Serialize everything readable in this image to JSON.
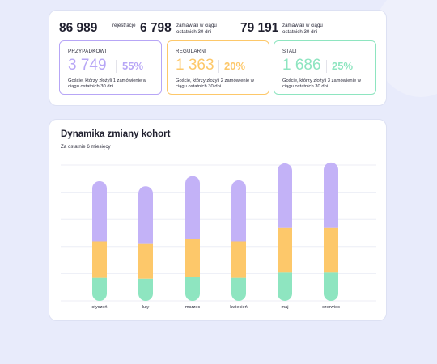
{
  "summary": {
    "stats": [
      {
        "value": "86 989",
        "label": "rejestracje"
      },
      {
        "value": "6 798",
        "label": "zamawiali w ciągu ostatnich 30 dni"
      },
      {
        "value": "79 191",
        "label": "zamawiali w ciągu ostatnich 30 dni"
      }
    ],
    "segments": [
      {
        "title": "PRZYPADKOWI",
        "count": "3 749",
        "percent": "55%",
        "description": "Goście, którzy złożyli 1 zamówienie w ciągu ostatnich 30 dni",
        "color": "#b7a6f6"
      },
      {
        "title": "REGULARNI",
        "count": "1 363",
        "percent": "20%",
        "description": "Goście, którzy złożyli 2 zamówienie w ciągu ostatnich 30 dni",
        "color": "#fdc86a"
      },
      {
        "title": "STALI",
        "count": "1 686",
        "percent": "25%",
        "description": "Goście, którzy złożyli 3 zamówienie w ciągu ostatnich 30 dni",
        "color": "#8ee5c0"
      }
    ]
  },
  "chart": {
    "title": "Dynamika zmiany kohort",
    "subtitle": "Za ostatnie 6 miesięcy"
  },
  "chart_data": {
    "type": "bar",
    "stacked": true,
    "categories": [
      "styczeń",
      "luty",
      "marzec",
      "kwiecień",
      "maj",
      "czerwiec"
    ],
    "series": [
      {
        "color": "#8ee5c0",
        "values": [
          27,
          26,
          28,
          27,
          34,
          34
        ]
      },
      {
        "color": "#fdc86a",
        "values": [
          43,
          41,
          45,
          43,
          52,
          52
        ]
      },
      {
        "color": "#c3b2f7",
        "values": [
          71,
          68,
          74,
          72,
          76,
          77
        ]
      }
    ],
    "ylim": [
      0,
      160
    ],
    "grid": true
  }
}
